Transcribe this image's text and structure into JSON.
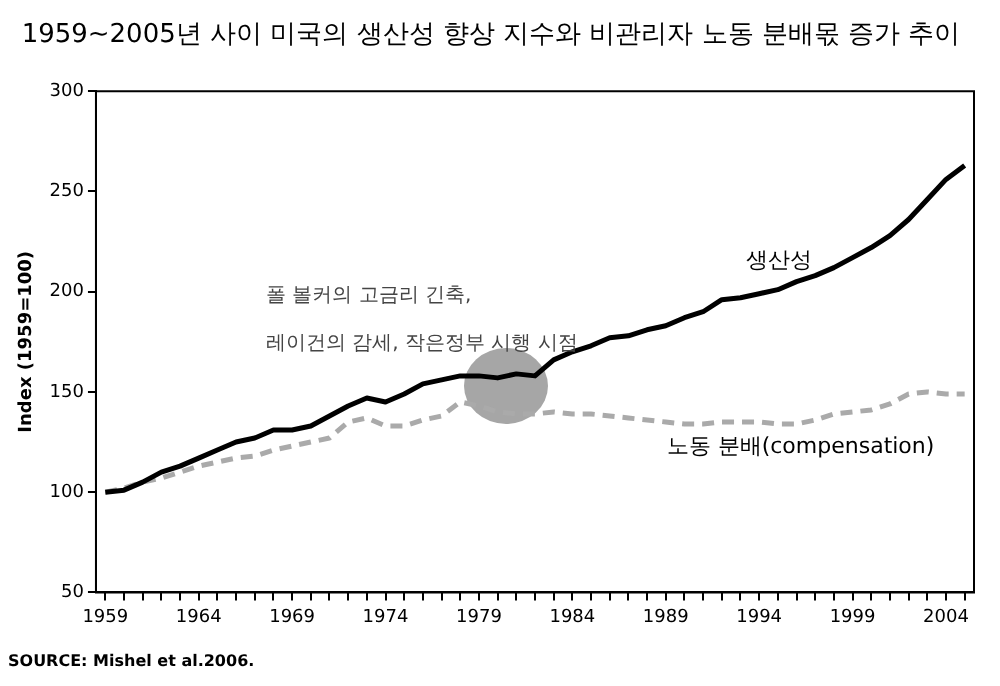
{
  "chart_data": {
    "type": "line",
    "title": "1959~2005년 사이 미국의 생산성 향상 지수와 비관리자 노동 분배몫 증가 추이",
    "ylabel": "Index (1959=100)",
    "annotations": [
      "폴 볼커의 고금리 긴축,",
      "레이건의 감세, 작은정부 시행 시점",
      "SOURCE: Mishel et al.2006."
    ],
    "x": [
      1959,
      1960,
      1961,
      1962,
      1963,
      1964,
      1965,
      1966,
      1967,
      1968,
      1969,
      1970,
      1971,
      1972,
      1973,
      1974,
      1975,
      1976,
      1977,
      1978,
      1979,
      1980,
      1981,
      1982,
      1983,
      1984,
      1985,
      1986,
      1987,
      1988,
      1989,
      1990,
      1991,
      1992,
      1993,
      1994,
      1995,
      1996,
      1997,
      1998,
      1999,
      2000,
      2001,
      2002,
      2003,
      2004,
      2005
    ],
    "series": [
      {
        "name": "생산성",
        "color": "#000000",
        "line_style": "solid",
        "values": [
          100,
          101,
          105,
          110,
          113,
          117,
          121,
          125,
          127,
          131,
          131,
          133,
          138,
          143,
          147,
          145,
          149,
          154,
          156,
          158,
          158,
          157,
          159,
          158,
          166,
          170,
          173,
          177,
          178,
          181,
          183,
          187,
          190,
          196,
          197,
          199,
          201,
          205,
          208,
          212,
          217,
          222,
          228,
          236,
          246,
          256,
          263
        ]
      },
      {
        "name": "노동 분배(compensation)",
        "color": "#aaaaaa",
        "line_style": "dashed",
        "values": [
          100,
          102,
          105,
          107,
          110,
          113,
          115,
          117,
          118,
          121,
          123,
          125,
          127,
          135,
          137,
          133,
          133,
          136,
          138,
          145,
          143,
          140,
          139,
          139,
          140,
          139,
          139,
          138,
          137,
          136,
          135,
          134,
          134,
          135,
          135,
          135,
          134,
          134,
          136,
          139,
          140,
          141,
          144,
          149,
          150,
          149,
          149
        ]
      }
    ],
    "xlim": [
      1958.5,
      2005.5
    ],
    "xticks": [
      1959,
      {
        "value": 1960,
        "label": null
      },
      {
        "value": 1961,
        "label": null
      },
      {
        "value": 1962,
        "label": null
      },
      {
        "value": 1963,
        "label": null
      },
      1964,
      {
        "value": 1965,
        "label": null
      },
      {
        "value": 1966,
        "label": null
      },
      {
        "value": 1967,
        "label": null
      },
      {
        "value": 1968,
        "label": null
      },
      1969,
      {
        "value": 1970,
        "label": null
      },
      {
        "value": 1971,
        "label": null
      },
      {
        "value": 1972,
        "label": null
      },
      {
        "value": 1973,
        "label": null
      },
      1974,
      {
        "value": 1975,
        "label": null
      },
      {
        "value": 1976,
        "label": null
      },
      {
        "value": 1977,
        "label": null
      },
      {
        "value": 1978,
        "label": null
      },
      1979,
      {
        "value": 1980,
        "label": null
      },
      {
        "value": 1981,
        "label": null
      },
      {
        "value": 1982,
        "label": null
      },
      {
        "value": 1983,
        "label": null
      },
      1984,
      {
        "value": 1985,
        "label": null
      },
      {
        "value": 1986,
        "label": null
      },
      {
        "value": 1987,
        "label": null
      },
      {
        "value": 1988,
        "label": null
      },
      1989,
      {
        "value": 1990,
        "label": null
      },
      {
        "value": 1991,
        "label": null
      },
      {
        "value": 1992,
        "label": null
      },
      {
        "value": 1993,
        "label": null
      },
      1994,
      {
        "value": 1995,
        "label": null
      },
      {
        "value": 1996,
        "label": null
      },
      {
        "value": 1997,
        "label": null
      },
      {
        "value": 1998,
        "label": null
      },
      1999,
      {
        "value": 2000,
        "label": null
      },
      {
        "value": 2001,
        "label": null
      },
      {
        "value": 2002,
        "label": null
      },
      {
        "value": 2003,
        "label": null
      },
      2004,
      {
        "value": 2005,
        "label": null
      }
    ],
    "ylim": [
      50,
      300
    ],
    "yticks": [
      50,
      100,
      150,
      200,
      250,
      300
    ],
    "grid": false,
    "legend": false,
    "marker": "none"
  }
}
